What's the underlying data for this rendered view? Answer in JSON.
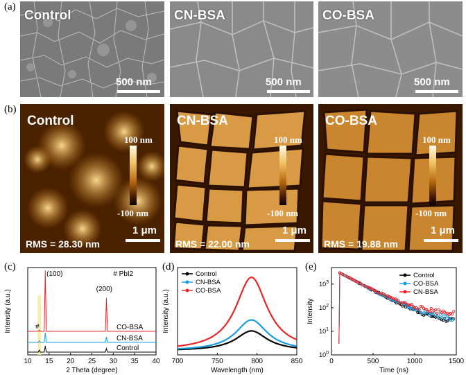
{
  "panels": {
    "a": "(a)",
    "b": "(b)",
    "c": "(c)",
    "d": "(d)",
    "e": "(e)"
  },
  "sem": [
    {
      "label": "Control",
      "scale": "500 nm"
    },
    {
      "label": "CN-BSA",
      "scale": "500 nm"
    },
    {
      "label": "CO-BSA",
      "scale": "500 nm"
    }
  ],
  "afm": [
    {
      "label": "Control",
      "cb_top": "100 nm",
      "cb_bot": "-100 nm",
      "scale": "1 μm",
      "rms": "RMS = 28.30 nm"
    },
    {
      "label": "CN-BSA",
      "cb_top": "100 nm",
      "cb_bot": "-100 nm",
      "scale": "1 μm",
      "rms": "RMS = 22.00 nm"
    },
    {
      "label": "CO-BSA",
      "cb_top": "100 nm",
      "cb_bot": "-100 nm",
      "scale": "1 μm",
      "rms": "RMS = 19.88  nm"
    }
  ],
  "chart_data": [
    {
      "type": "line",
      "panel": "c",
      "xlabel": "2 Theta (degree)",
      "ylabel": "Intensity (a.u.)",
      "xlim": [
        10,
        40
      ],
      "xticks": [
        10,
        15,
        20,
        25,
        30,
        35,
        40
      ],
      "annotations": [
        "(100)",
        "(200)",
        "#",
        "# PbI2"
      ],
      "series": [
        {
          "name": "CO-BSA",
          "color": "#e8262a",
          "peaks": [
            {
              "x": 12.7,
              "h": 0.02
            },
            {
              "x": 14.1,
              "h": 1.0
            },
            {
              "x": 28.4,
              "h": 0.55
            }
          ]
        },
        {
          "name": "CN-BSA",
          "color": "#1a9ce0",
          "peaks": [
            {
              "x": 12.7,
              "h": 0.06
            },
            {
              "x": 14.1,
              "h": 0.35
            },
            {
              "x": 28.4,
              "h": 0.2
            }
          ]
        },
        {
          "name": "Control",
          "color": "#000000",
          "peaks": [
            {
              "x": 12.7,
              "h": 0.1
            },
            {
              "x": 14.1,
              "h": 0.3
            },
            {
              "x": 28.4,
              "h": 0.18
            }
          ]
        }
      ]
    },
    {
      "type": "line",
      "panel": "d",
      "xlabel": "Wavelength (nm)",
      "ylabel": "Intensity (a.u.)",
      "xlim": [
        700,
        850
      ],
      "xticks": [
        700,
        750,
        800,
        850
      ],
      "legend": "top-left",
      "series": [
        {
          "name": "Control",
          "color": "#000000",
          "peak_x": 793,
          "peak": 0.27,
          "width": 24
        },
        {
          "name": "CN-BSA",
          "color": "#1a9ce0",
          "peak_x": 793,
          "peak": 0.42,
          "width": 24
        },
        {
          "name": "CO-BSA",
          "color": "#e8262a",
          "peak_x": 793,
          "peak": 1.0,
          "width": 24
        }
      ]
    },
    {
      "type": "scatter",
      "panel": "e",
      "xlabel": "Time (ns)",
      "ylabel": "Intensity",
      "xlim": [
        0,
        1500
      ],
      "xticks": [
        0,
        500,
        1000,
        1500
      ],
      "ylim": [
        1,
        5000
      ],
      "yscale": "log",
      "yticks": [
        1,
        10,
        100,
        1000
      ],
      "ytick_labels": [
        "10^0",
        "10^1",
        "10^2",
        "10^3"
      ],
      "legend": "top-right",
      "series": [
        {
          "name": "Control",
          "color": "#000000",
          "end": 20
        },
        {
          "name": "CO-BSA",
          "color": "#1a9ce0",
          "end": 28
        },
        {
          "name": "CN-BSA",
          "color": "#e8262a",
          "end": 55
        }
      ]
    }
  ]
}
